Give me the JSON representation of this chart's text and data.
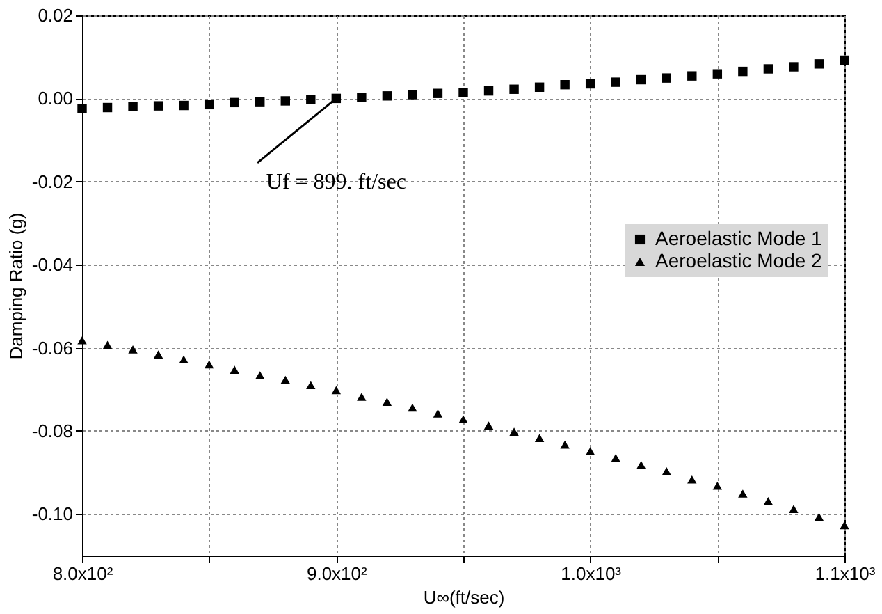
{
  "chart_data": {
    "type": "scatter",
    "xlabel": "U∞(ft/sec)",
    "ylabel": "Damping Ratio (g)",
    "x": [
      800,
      810,
      820,
      830,
      840,
      850,
      860,
      870,
      880,
      890,
      900,
      910,
      920,
      930,
      940,
      950,
      960,
      970,
      980,
      990,
      1000,
      1010,
      1020,
      1030,
      1040,
      1050,
      1060,
      1070,
      1080,
      1090,
      1100
    ],
    "series": [
      {
        "name": "Aeroelastic Mode 1",
        "color": "#000000",
        "marker": "square",
        "values": [
          -0.0024,
          -0.0022,
          -0.002,
          -0.0018,
          -0.0017,
          -0.0015,
          -0.001,
          -0.0008,
          -0.0006,
          -0.0003,
          0.0,
          0.0002,
          0.0006,
          0.0009,
          0.0012,
          0.0014,
          0.0018,
          0.0022,
          0.0027,
          0.0033,
          0.0035,
          0.0039,
          0.0045,
          0.0049,
          0.0054,
          0.0059,
          0.0065,
          0.0071,
          0.0076,
          0.0083,
          0.0092
        ]
      },
      {
        "name": "Aeroelastic Mode 2",
        "color": "#000000",
        "marker": "triangle",
        "values": [
          -0.0582,
          -0.0593,
          -0.0604,
          -0.0616,
          -0.0628,
          -0.064,
          -0.0653,
          -0.0666,
          -0.0677,
          -0.069,
          -0.0702,
          -0.0718,
          -0.073,
          -0.0744,
          -0.0758,
          -0.0772,
          -0.0787,
          -0.0802,
          -0.0817,
          -0.0833,
          -0.0849,
          -0.0865,
          -0.0882,
          -0.0897,
          -0.0917,
          -0.0932,
          -0.0951,
          -0.0969,
          -0.0988,
          -0.1007,
          -0.1027
        ]
      }
    ],
    "xlim": [
      800,
      1100
    ],
    "xticks": [
      {
        "value": 800,
        "label": "8.0x10²"
      },
      {
        "value": 850,
        "label": null
      },
      {
        "value": 900,
        "label": "9.0x10²"
      },
      {
        "value": 950,
        "label": null
      },
      {
        "value": 1000,
        "label": "1.0x10³"
      },
      {
        "value": 1050,
        "label": null
      },
      {
        "value": 1100,
        "label": "1.1x10³"
      }
    ],
    "ylim": [
      -0.11,
      0.02
    ],
    "yticks": [
      0.02,
      {
        "value": 0,
        "label": "0.00"
      },
      -0.02,
      -0.04,
      -0.06,
      -0.08,
      {
        "value": -0.1,
        "label": "-0.10"
      }
    ],
    "grid": true,
    "legend": "right",
    "annotations": [
      {
        "text": "Uf = 899. ft/sec",
        "x": 900,
        "y": 0
      }
    ]
  }
}
